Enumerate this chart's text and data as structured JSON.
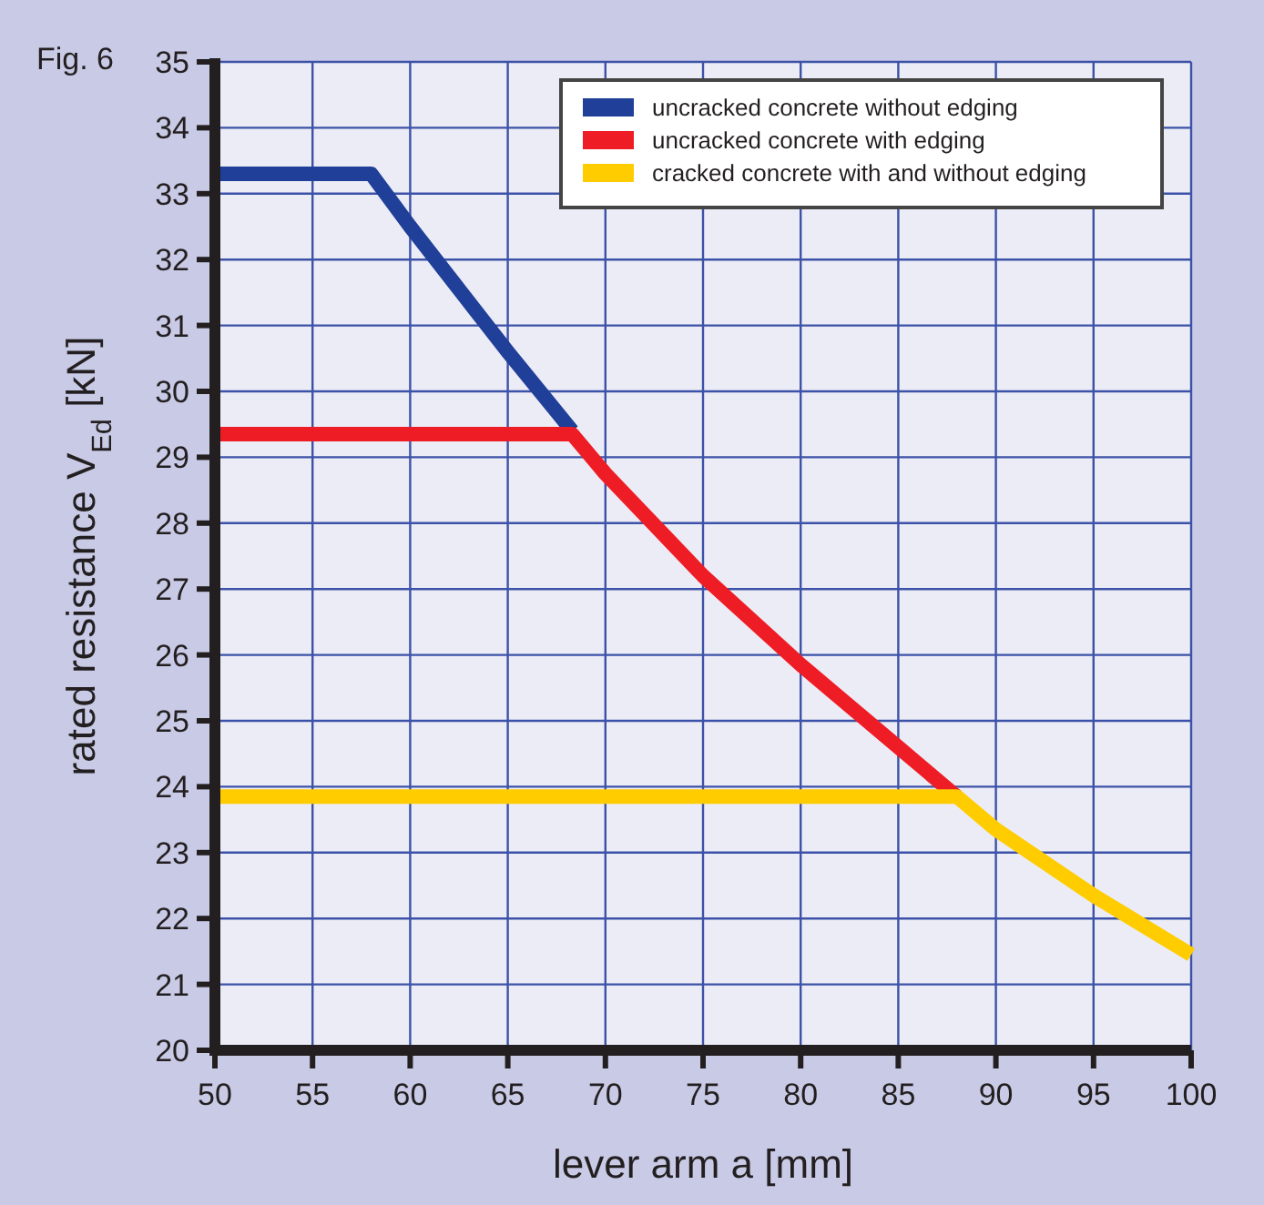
{
  "chart_data": {
    "type": "line",
    "title": "Fig. 6",
    "xlabel": "lever arm a [mm]",
    "ylabel": "rated resistance V$_{Ed}$ [kN]",
    "xlim": [
      50,
      100
    ],
    "xticks": [
      50,
      55,
      60,
      65,
      70,
      75,
      80,
      85,
      90,
      95,
      100
    ],
    "ylim": [
      20,
      35
    ],
    "yticks": [
      20,
      21,
      22,
      23,
      24,
      25,
      26,
      27,
      28,
      29,
      30,
      31,
      32,
      33,
      34,
      35
    ],
    "grid": true,
    "legend": "top right",
    "marker": "none",
    "line_style": "solid",
    "series": [
      {
        "name": "uncracked concrete without edging",
        "color": "#1f3f98",
        "x": [
          50,
          58,
          60,
          65,
          68.3
        ],
        "values": [
          33.3,
          33.3,
          32.5,
          30.6,
          29.4
        ]
      },
      {
        "name": "uncracked concrete with edging",
        "color": "#ee1c25",
        "x": [
          50,
          68.3,
          70,
          75,
          80,
          85,
          88
        ],
        "values": [
          29.35,
          29.35,
          28.75,
          27.2,
          25.85,
          24.6,
          23.85
        ]
      },
      {
        "name": "cracked concrete with and without edging",
        "color": "#ffcc00",
        "x": [
          50,
          88,
          90,
          95,
          100
        ],
        "values": [
          23.85,
          23.85,
          23.35,
          22.35,
          21.45
        ]
      }
    ]
  }
}
